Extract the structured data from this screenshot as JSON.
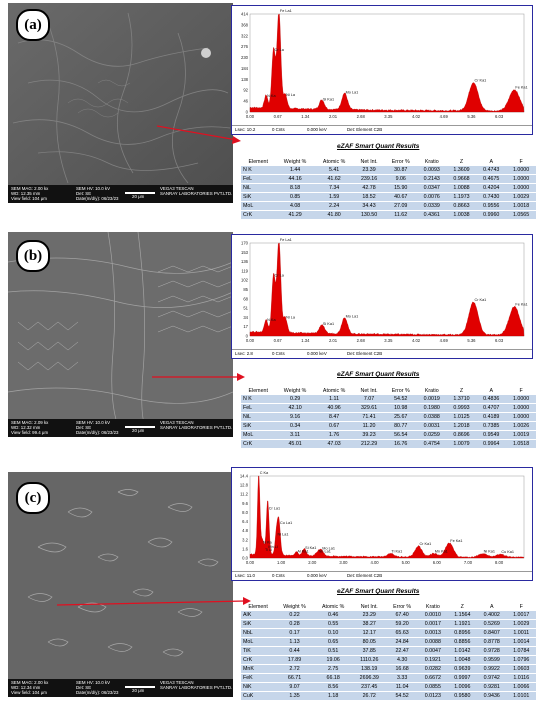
{
  "panels": [
    {
      "letter": "(a)",
      "sem": {
        "left1": "SEM MAG: 2.00 kx",
        "left2": "WD: 12.35 mm",
        "left3": "View field: 104 μm",
        "mid1": "SEM HV: 10.0 kV",
        "mid2": "Det: SE",
        "mid3": "Date(m/d/y): 06/23/23",
        "scale": "20 μm",
        "right1": "VEGA3 TESCAN",
        "right2": "SANRAY LABORATORIES PVT.LTD."
      },
      "spectrum": {
        "ymax": 414,
        "yticks": [
          "414",
          "368",
          "322",
          "276",
          "230",
          "184",
          "138",
          "92",
          "46",
          "0"
        ],
        "xticks": [
          "0.00",
          "0.67",
          "1.34",
          "2.01",
          "2.68",
          "3.35",
          "4.02",
          "4.69",
          "5.36",
          "6.03"
        ],
        "peaks": [
          {
            "label": "N Ka",
            "x": 0.39,
            "h": 55
          },
          {
            "label": "Cr La",
            "x": 0.57,
            "h": 250
          },
          {
            "label": "Fe La1",
            "x": 0.7,
            "h": 414
          },
          {
            "label": "Ni La",
            "x": 0.85,
            "h": 60
          },
          {
            "label": "Si Ka1",
            "x": 1.74,
            "h": 40
          },
          {
            "label": "Mo La1",
            "x": 2.29,
            "h": 70
          },
          {
            "label": "Cr Ka1",
            "x": 5.41,
            "h": 120
          },
          {
            "label": "Fe Ka1",
            "x": 6.4,
            "h": 90
          }
        ],
        "footer": {
          "lsec": "Lsec: 10.2",
          "cnts": "0 Cnts",
          "kev": "0.000 keV",
          "det": "Det: Element C2B"
        }
      },
      "title": "eZAF Smart Quant Results",
      "headers": [
        "Element",
        "Weight %",
        "Atomic %",
        "Net Int.",
        "Error %",
        "Kratio",
        "Z",
        "A",
        "F"
      ],
      "rows": [
        [
          "N K",
          "1.44",
          "5.41",
          "23.39",
          "30.87",
          "0.0093",
          "1.3609",
          "0.4743",
          "1.0000"
        ],
        [
          "FeL",
          "44.16",
          "41.62",
          "239.16",
          "9.06",
          "0.2143",
          "0.9668",
          "0.4675",
          "1.0000"
        ],
        [
          "NiL",
          "8.18",
          "7.34",
          "42.78",
          "15.90",
          "0.0347",
          "1.0088",
          "0.4204",
          "1.0000"
        ],
        [
          "SiK",
          "0.85",
          "1.59",
          "18.52",
          "40.67",
          "0.0076",
          "1.1973",
          "0.7430",
          "1.0029"
        ],
        [
          "MoL",
          "4.08",
          "2.24",
          "34.43",
          "27.09",
          "0.0339",
          "0.8663",
          "0.9556",
          "1.0018"
        ],
        [
          "CrK",
          "41.29",
          "41.80",
          "130.50",
          "11.62",
          "0.4361",
          "1.0038",
          "0.9960",
          "1.0565"
        ]
      ]
    },
    {
      "letter": "(b)",
      "sem": {
        "left1": "SEM MAG: 2.09 kx",
        "left2": "WD: 12.32 mm",
        "left3": "View field: 99.4 μm",
        "mid1": "SEM HV: 10.0 kV",
        "mid2": "Det: SE",
        "mid3": "Date(m/d/y): 06/23/23",
        "scale": "20 μm",
        "right1": "VEGA3 TESCAN",
        "right2": "SANRAY LABORATORIES PVT.LTD."
      },
      "spectrum": {
        "ymax": 170,
        "yticks": [
          "170",
          "153",
          "136",
          "119",
          "102",
          "85",
          "68",
          "51",
          "34",
          "17",
          "0"
        ],
        "xticks": [
          "0.00",
          "0.67",
          "1.34",
          "2.01",
          "2.68",
          "3.35",
          "4.02",
          "4.69",
          "5.36",
          "6.03"
        ],
        "peaks": [
          {
            "label": "N Ka",
            "x": 0.39,
            "h": 24
          },
          {
            "label": "Cr La",
            "x": 0.57,
            "h": 105
          },
          {
            "label": "Fe La1",
            "x": 0.7,
            "h": 170
          },
          {
            "label": "Ni La",
            "x": 0.85,
            "h": 28
          },
          {
            "label": "Si Ka1",
            "x": 1.74,
            "h": 16
          },
          {
            "label": "Mo La1",
            "x": 2.29,
            "h": 30
          },
          {
            "label": "Cr Ka1",
            "x": 5.41,
            "h": 60
          },
          {
            "label": "Fe Ka1",
            "x": 6.4,
            "h": 52
          }
        ],
        "footer": {
          "lsec": "Lsec: 2.8",
          "cnts": "0 Cnts",
          "kev": "0.000 keV",
          "det": "Det: Element C2B"
        }
      },
      "title": "eZAF Smart Quant Results",
      "headers": [
        "Element",
        "Weight %",
        "Atomic %",
        "Net Int.",
        "Error %",
        "Kratio",
        "Z",
        "A",
        "F"
      ],
      "rows": [
        [
          "N K",
          "0.29",
          "1.11",
          "7.07",
          "54.52",
          "0.0019",
          "1.3710",
          "0.4836",
          "1.0000"
        ],
        [
          "FeL",
          "42.10",
          "40.96",
          "329.61",
          "10.98",
          "0.1980",
          "0.9993",
          "0.4707",
          "1.0000"
        ],
        [
          "NiL",
          "9.16",
          "8.47",
          "71.41",
          "25.67",
          "0.0388",
          "1.0125",
          "0.4189",
          "1.0000"
        ],
        [
          "SiK",
          "0.34",
          "0.67",
          "11.20",
          "80.77",
          "0.0031",
          "1.2018",
          "0.7385",
          "1.0026"
        ],
        [
          "MoL",
          "3.11",
          "1.76",
          "39.23",
          "56.54",
          "0.0259",
          "0.8696",
          "0.9549",
          "1.0019"
        ],
        [
          "CrK",
          "45.01",
          "47.03",
          "212.29",
          "16.76",
          "0.4754",
          "1.0079",
          "0.9964",
          "1.0518"
        ]
      ]
    },
    {
      "letter": "(c)",
      "sem": {
        "left1": "SEM MAG: 2.00 kx",
        "left2": "WD: 12.34 mm",
        "left3": "View field: 104 μm",
        "mid1": "SEM HV: 10.0 kV",
        "mid2": "Det: SE",
        "mid3": "Date(m/d/y): 06/23/23",
        "scale": "20 μm",
        "right1": "VEGA3 TESCAN",
        "right2": "SANRAY LABORATORIES PVT.LTD."
      },
      "spectrum": {
        "ymax": 14.4,
        "yticks": [
          "14.4",
          "12.8",
          "11.2",
          "9.6",
          "8.0",
          "6.4",
          "4.8",
          "3.2",
          "1.6",
          "0.0"
        ],
        "xticks": [
          "0.00",
          "1.00",
          "2.00",
          "3.00",
          "4.00",
          "5.00",
          "6.00",
          "7.00",
          "8.00"
        ],
        "peaks": [
          {
            "label": "C Ka",
            "x": 0.28,
            "h": 14.4
          },
          {
            "label": "N Ka",
            "x": 0.39,
            "h": 2.2
          },
          {
            "label": "Mn Ll",
            "x": 0.56,
            "h": 1.4
          },
          {
            "label": "Ti Ll",
            "x": 0.45,
            "h": 0.9
          },
          {
            "label": "Cr La1",
            "x": 0.57,
            "h": 8.2
          },
          {
            "label": "Cu La1",
            "x": 0.93,
            "h": 5.6
          },
          {
            "label": "Ni La1",
            "x": 0.85,
            "h": 3.6
          },
          {
            "label": "Al Ka1",
            "x": 1.49,
            "h": 0.6
          },
          {
            "label": "Si Ka1",
            "x": 1.74,
            "h": 1.2
          },
          {
            "label": "Mo La1",
            "x": 2.29,
            "h": 1.1
          },
          {
            "label": "Nb La1",
            "x": 2.17,
            "h": 0.6
          },
          {
            "label": "Ti Ka1",
            "x": 4.51,
            "h": 0.6
          },
          {
            "label": "Cr Ka1",
            "x": 5.41,
            "h": 1.9
          },
          {
            "label": "Mn Ka1",
            "x": 5.9,
            "h": 0.6
          },
          {
            "label": "Fe Ka1",
            "x": 6.4,
            "h": 2.5
          },
          {
            "label": "Ni Ka1",
            "x": 7.47,
            "h": 0.6
          },
          {
            "label": "Cu Ka1",
            "x": 8.04,
            "h": 0.5
          }
        ],
        "footer": {
          "lsec": "Lsec: 11.0",
          "cnts": "0 Cnts",
          "kev": "0.000 keV",
          "det": "Det: Element C2B"
        }
      },
      "title": "eZAF Smart Quant Results",
      "headers": [
        "Element",
        "Weight %",
        "Atomic %",
        "Net Int.",
        "Error %",
        "Kratio",
        "Z",
        "A",
        "F"
      ],
      "rows": [
        [
          "AlK",
          "0.22",
          "0.46",
          "23.29",
          "67.40",
          "0.0010",
          "1.1564",
          "0.4002",
          "1.0017"
        ],
        [
          "SiK",
          "0.28",
          "0.55",
          "38.27",
          "59.20",
          "0.0017",
          "1.1921",
          "0.5269",
          "1.0029"
        ],
        [
          "NbL",
          "0.17",
          "0.10",
          "12.17",
          "65.63",
          "0.0013",
          "0.8956",
          "0.8407",
          "1.0011"
        ],
        [
          "MoL",
          "1.13",
          "0.65",
          "80.05",
          "24.84",
          "0.0088",
          "0.8856",
          "0.8778",
          "1.0014"
        ],
        [
          "TiK",
          "0.44",
          "0.51",
          "37.85",
          "22.47",
          "0.0047",
          "1.0142",
          "0.9728",
          "1.0784"
        ],
        [
          "CrK",
          "17.89",
          "19.06",
          "1110.26",
          "4.30",
          "0.1921",
          "1.0048",
          "0.9599",
          "1.0796"
        ],
        [
          "MnK",
          "2.72",
          "2.75",
          "138.19",
          "16.68",
          "0.0282",
          "0.9639",
          "0.9922",
          "1.0603"
        ],
        [
          "FeK",
          "66.71",
          "66.18",
          "2696.39",
          "3.33",
          "0.6672",
          "0.9997",
          "0.9742",
          "1.0116"
        ],
        [
          "NiK",
          "9.07",
          "8.56",
          "237.45",
          "11.04",
          "0.0855",
          "1.0096",
          "0.9281",
          "1.0066"
        ],
        [
          "CuK",
          "1.35",
          "1.18",
          "26.72",
          "54.52",
          "0.0123",
          "0.9580",
          "0.9436",
          "1.0101"
        ]
      ]
    }
  ]
}
